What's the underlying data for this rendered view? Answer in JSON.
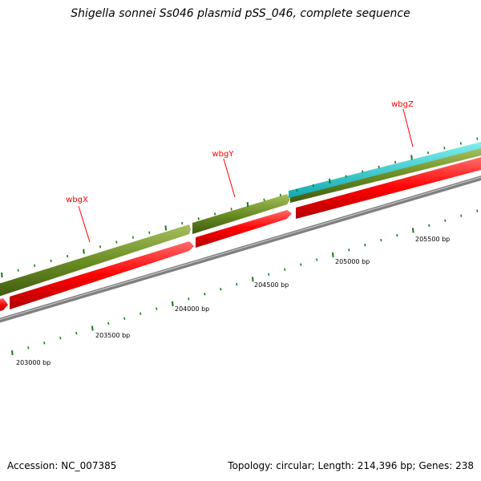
{
  "title": "Shigella sonnei Ss046 plasmid pSS_046, complete sequence",
  "footer": {
    "accession": "Accession: NC_007385",
    "summary": "Topology: circular; Length: 214,396 bp; Genes: 238"
  },
  "genes": [
    {
      "name": "wbgX",
      "color": "#ff0000"
    },
    {
      "name": "wbgY",
      "color": "#ff0000"
    },
    {
      "name": "wbgZ",
      "color": "#ff0000"
    }
  ],
  "ruler_labels": [
    "203000 bp",
    "203500 bp",
    "204000 bp",
    "204500 bp",
    "205000 bp",
    "205500 bp"
  ],
  "colors": {
    "forward_track": "#6b8e23",
    "reverse_track": "#ff0000",
    "cyan_track": "#20c8c8",
    "backbone": "#808080",
    "ticks": "#1a7a1a",
    "gene_label": "#ff0000"
  }
}
